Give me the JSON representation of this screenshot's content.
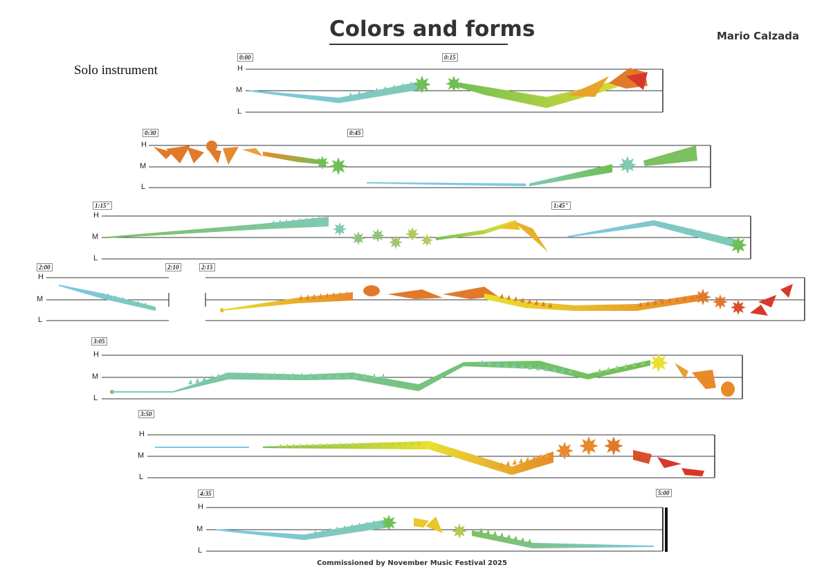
{
  "header": {
    "title": "Colors and forms",
    "composer": "Mario Calzada",
    "instrument": "Solo instrument"
  },
  "footer": {
    "commission": "Commissioned by November Music Festival 2025"
  },
  "levels": {
    "high": "H",
    "mid": "M",
    "low": "L"
  },
  "colors": {
    "blue": "#7ec8e3",
    "teal": "#7fc9b5",
    "green": "#7cc060",
    "yellow": "#e8e030",
    "orange": "#e8892a",
    "red": "#d8382a",
    "staff": "#333333"
  },
  "systems": [
    {
      "time_marks": [
        "0:00",
        "0:15"
      ]
    },
    {
      "time_marks": [
        "0:30",
        "0:45"
      ]
    },
    {
      "time_marks": [
        "1:15\"",
        "1:45\""
      ]
    },
    {
      "time_marks": [
        "2:00",
        "2:10",
        "2:15"
      ]
    },
    {
      "time_marks": [
        "3:05"
      ]
    },
    {
      "time_marks": [
        "3:50"
      ]
    },
    {
      "time_marks": [
        "4:35",
        "5:00"
      ]
    }
  ]
}
